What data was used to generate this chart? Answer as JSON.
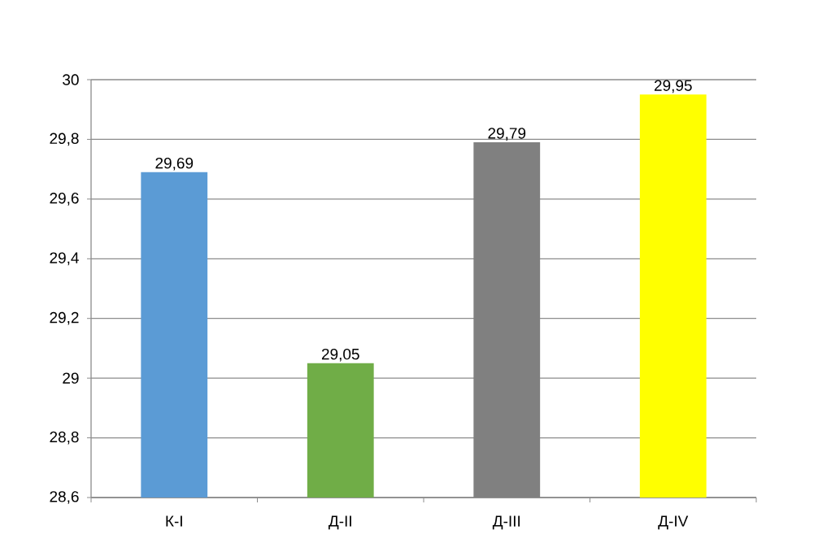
{
  "chart_data": {
    "type": "bar",
    "categories": [
      "К-I",
      "Д-II",
      "Д-III",
      "Д-IV"
    ],
    "values": [
      29.69,
      29.05,
      29.79,
      29.95
    ],
    "colors": [
      "#5b9bd5",
      "#70ad47",
      "#808080",
      "#ffff00"
    ],
    "value_labels": [
      "29,69",
      "29,05",
      "29,79",
      "29,95"
    ],
    "ylim": [
      28.6,
      30
    ],
    "yticks": [
      {
        "value": 28.6,
        "label": "28,6"
      },
      {
        "value": 28.8,
        "label": "28,8"
      },
      29,
      {
        "value": 29.2,
        "label": "29,2"
      },
      {
        "value": 29.4,
        "label": "29,4"
      },
      {
        "value": 29.6,
        "label": "29,6"
      },
      {
        "value": 29.8,
        "label": "29,8"
      },
      30
    ],
    "grid": "y"
  }
}
